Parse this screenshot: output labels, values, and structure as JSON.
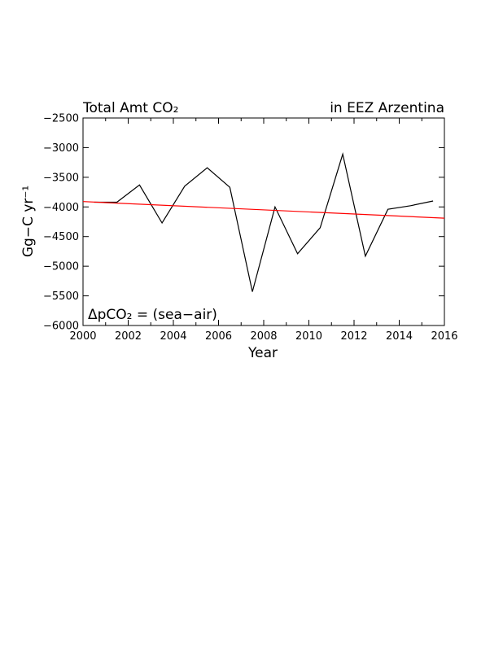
{
  "chart_data": {
    "type": "line",
    "title_left": "Total Amt CO₂",
    "title_right": "in EEZ Arzentina",
    "annotation": "ΔpCO₂ = (sea−air)",
    "xlabel": "Year",
    "ylabel": "Gg−C yr⁻¹",
    "xlim": [
      2000,
      2016
    ],
    "ylim": [
      -6000,
      -2500
    ],
    "xticks": [
      2000,
      2002,
      2004,
      2006,
      2008,
      2010,
      2012,
      2014,
      2016
    ],
    "yticks": [
      -6000,
      -5500,
      -5000,
      -4500,
      -4000,
      -3500,
      -3000,
      -2500
    ],
    "grid": false,
    "series": [
      {
        "color": "#000000",
        "x": [
          2000.5,
          2001.5,
          2002.5,
          2003.5,
          2004.5,
          2005.5,
          2006.5,
          2007.5,
          2008.5,
          2009.5,
          2010.5,
          2011.5,
          2012.5,
          2013.5,
          2014.5,
          2015.5
        ],
        "y": [
          -3920,
          -3920,
          -3630,
          -4270,
          -3650,
          -3340,
          -3670,
          -5430,
          -4000,
          -4790,
          -4350,
          -3110,
          -4830,
          -4040,
          -3980,
          -3900
        ]
      },
      {
        "color": "#ff0000",
        "type": "trend",
        "x": [
          2000,
          2016
        ],
        "y": [
          -3910,
          -4190
        ]
      }
    ]
  }
}
